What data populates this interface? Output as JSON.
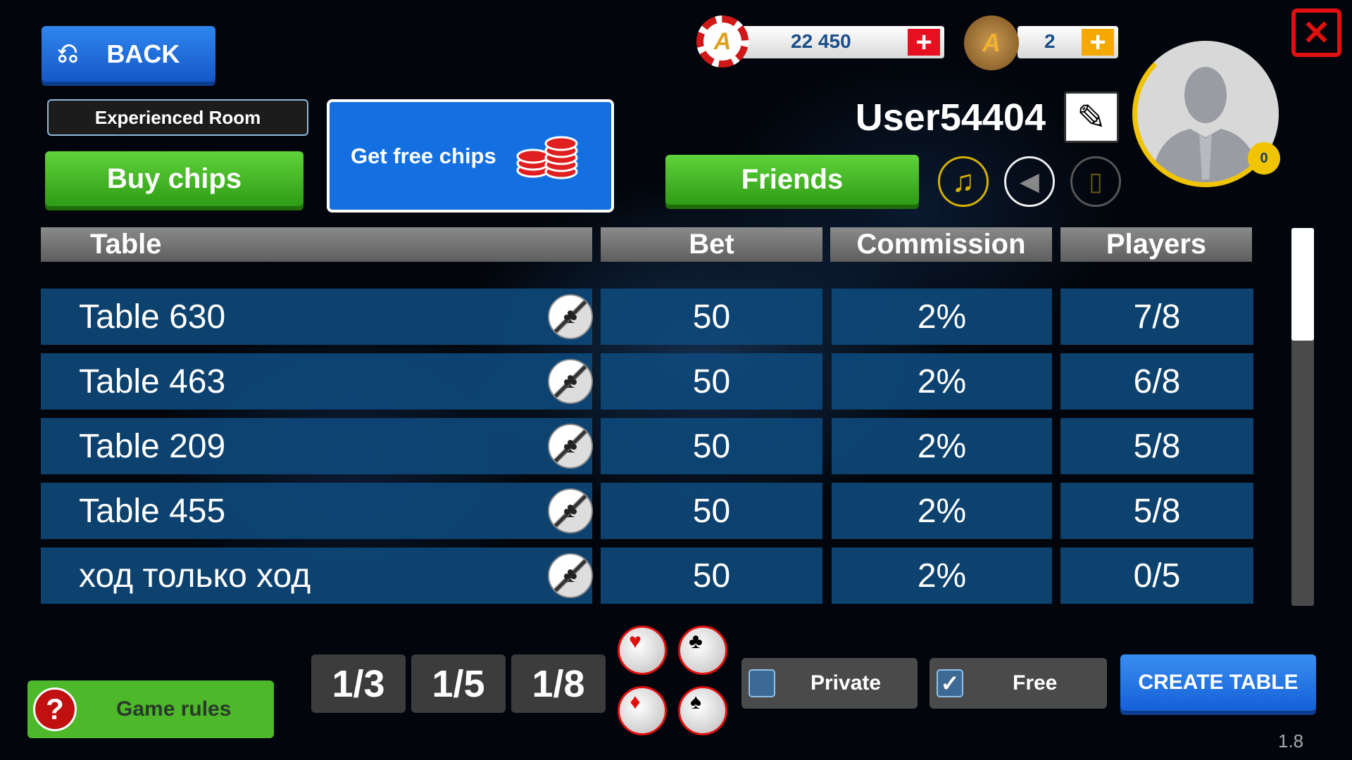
{
  "header": {
    "back_label": "BACK",
    "room_label": "Experienced Room",
    "buy_chips_label": "Buy chips",
    "free_chips_label": "Get free chips",
    "chips_balance": "22 450",
    "gold_balance": "2",
    "username": "User54404",
    "friends_label": "Friends",
    "level_badge": "0"
  },
  "table": {
    "columns": [
      "Table",
      "Bet",
      "Commission",
      "Players"
    ],
    "rows": [
      {
        "name": "Table 630",
        "bet": "50",
        "commission": "2%",
        "players": "7/8"
      },
      {
        "name": "Table 463",
        "bet": "50",
        "commission": "2%",
        "players": "6/8"
      },
      {
        "name": "Table 209",
        "bet": "50",
        "commission": "2%",
        "players": "5/8"
      },
      {
        "name": "Table 455",
        "bet": "50",
        "commission": "2%",
        "players": "5/8"
      },
      {
        "name": "ход только ход",
        "bet": "50",
        "commission": "2%",
        "players": "0/5"
      }
    ]
  },
  "footer": {
    "game_rules_label": "Game rules",
    "fractions": [
      "1/3",
      "1/5",
      "1/8"
    ],
    "suits": [
      "♥",
      "♣",
      "♦",
      "♠"
    ],
    "private_label": "Private",
    "private_checked": false,
    "free_label": "Free",
    "free_checked": true,
    "create_label": "CREATE TABLE",
    "version": "1.8"
  },
  "colors": {
    "accent_blue": "#1a6fe0",
    "green": "#3cb41c",
    "table_row": "#0e4878",
    "close_red": "#e01010",
    "gold": "#f0c400"
  }
}
